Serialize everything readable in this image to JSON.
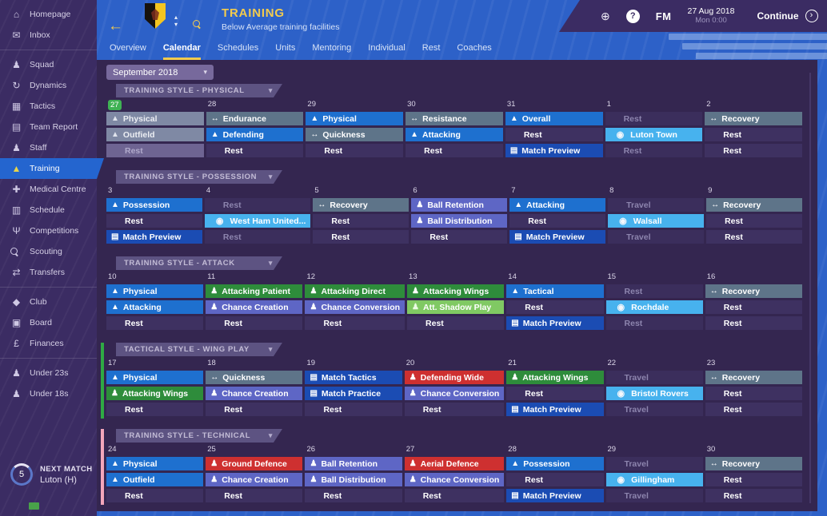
{
  "header": {
    "title": "TRAINING",
    "subtitle": "Below Average training facilities"
  },
  "topbar": {
    "fm_label": "FM",
    "date_line1": "27 Aug 2018",
    "date_line2": "Mon 0:00",
    "continue_label": "Continue"
  },
  "tabs": [
    {
      "label": "Overview",
      "active": false
    },
    {
      "label": "Calendar",
      "active": true
    },
    {
      "label": "Schedules",
      "active": false
    },
    {
      "label": "Units",
      "active": false
    },
    {
      "label": "Mentoring",
      "active": false
    },
    {
      "label": "Individual",
      "active": false
    },
    {
      "label": "Rest",
      "active": false
    },
    {
      "label": "Coaches",
      "active": false
    }
  ],
  "toolbar": {
    "month_label": "September 2018"
  },
  "sidebar": {
    "items": [
      {
        "icon": "home",
        "label": "Homepage"
      },
      {
        "icon": "inbox",
        "label": "Inbox",
        "divider_after": true
      },
      {
        "icon": "squad",
        "label": "Squad"
      },
      {
        "icon": "dynamics",
        "label": "Dynamics"
      },
      {
        "icon": "tactics",
        "label": "Tactics"
      },
      {
        "icon": "report",
        "label": "Team Report"
      },
      {
        "icon": "staff",
        "label": "Staff"
      },
      {
        "icon": "training",
        "label": "Training",
        "selected": true
      },
      {
        "icon": "medical",
        "label": "Medical Centre"
      },
      {
        "icon": "schedule",
        "label": "Schedule"
      },
      {
        "icon": "competitions",
        "label": "Competitions"
      },
      {
        "icon": "scouting",
        "label": "Scouting"
      },
      {
        "icon": "transfers",
        "label": "Transfers",
        "divider_after": true
      },
      {
        "icon": "club",
        "label": "Club"
      },
      {
        "icon": "boardroom",
        "label": "Board"
      },
      {
        "icon": "finances",
        "label": "Finances",
        "divider_after": true
      },
      {
        "icon": "u23",
        "label": "Under 23s"
      },
      {
        "icon": "u18",
        "label": "Under 18s"
      }
    ],
    "next_match": {
      "heading": "NEXT MATCH",
      "opponent": "Luton (H)",
      "countdown": "5"
    }
  },
  "colors": {
    "general_session": "#1e70cf",
    "physical_session": "#5e7489",
    "technical_session": "#5e66c5",
    "attacking_session": "#2e8c3b",
    "attacking_light_session": "#80c963",
    "defensive_session": "#ce3030",
    "match_preparation": "#1b4cb3",
    "match_day": "#47b2ee",
    "rest": "#3e3161",
    "today_badge": "#3fb254",
    "wing_play_accent": "#2faa44",
    "technical_accent": "#f2a6ba",
    "title_yellow": "#f2cb4e"
  },
  "weeks": [
    {
      "style_label": "TRAINING STYLE - PHYSICAL",
      "accent": null,
      "days": [
        {
          "num": "27",
          "today": true,
          "cells": [
            {
              "label": "Physical",
              "type": "past-session",
              "icon": "cone"
            },
            {
              "label": "Outfield",
              "type": "past-session",
              "icon": "cone"
            },
            {
              "label": "Rest",
              "type": "past-rest"
            }
          ]
        },
        {
          "num": "28",
          "cells": [
            {
              "label": "Endurance",
              "type": "physical",
              "icon": "stretch"
            },
            {
              "label": "Defending",
              "type": "general",
              "icon": "cone"
            },
            {
              "label": "Rest",
              "type": "rest"
            }
          ]
        },
        {
          "num": "29",
          "cells": [
            {
              "label": "Physical",
              "type": "general",
              "icon": "cone"
            },
            {
              "label": "Quickness",
              "type": "physical",
              "icon": "stretch"
            },
            {
              "label": "Rest",
              "type": "rest"
            }
          ]
        },
        {
          "num": "30",
          "cells": [
            {
              "label": "Resistance",
              "type": "physical",
              "icon": "stretch"
            },
            {
              "label": "Attacking",
              "type": "general",
              "icon": "cone"
            },
            {
              "label": "Rest",
              "type": "rest"
            }
          ]
        },
        {
          "num": "31",
          "cells": [
            {
              "label": "Overall",
              "type": "general",
              "icon": "cone"
            },
            {
              "label": "Rest",
              "type": "rest"
            },
            {
              "label": "Match Preview",
              "type": "prep",
              "icon": "board"
            }
          ]
        },
        {
          "num": "1",
          "cells": [
            {
              "label": "Rest",
              "type": "rest-muted"
            },
            {
              "label": "Luton Town",
              "type": "match",
              "icon": "badge"
            },
            {
              "label": "Rest",
              "type": "rest-muted"
            }
          ]
        },
        {
          "num": "2",
          "cells": [
            {
              "label": "Recovery",
              "type": "physical",
              "icon": "stretch"
            },
            {
              "label": "Rest",
              "type": "rest"
            },
            {
              "label": "Rest",
              "type": "rest"
            }
          ]
        }
      ]
    },
    {
      "style_label": "TRAINING STYLE - POSSESSION",
      "accent": null,
      "days": [
        {
          "num": "3",
          "cells": [
            {
              "label": "Possession",
              "type": "general",
              "icon": "cone"
            },
            {
              "label": "Rest",
              "type": "rest"
            },
            {
              "label": "Match Preview",
              "type": "prep",
              "icon": "board"
            }
          ]
        },
        {
          "num": "4",
          "cells": [
            {
              "label": "Rest",
              "type": "rest-muted"
            },
            {
              "label": "West Ham United...",
              "type": "match",
              "icon": "badge"
            },
            {
              "label": "Rest",
              "type": "rest-muted"
            }
          ]
        },
        {
          "num": "5",
          "cells": [
            {
              "label": "Recovery",
              "type": "physical",
              "icon": "stretch"
            },
            {
              "label": "Rest",
              "type": "rest"
            },
            {
              "label": "Rest",
              "type": "rest"
            }
          ]
        },
        {
          "num": "6",
          "cells": [
            {
              "label": "Ball Retention",
              "type": "technical",
              "icon": "person"
            },
            {
              "label": "Ball Distribution",
              "type": "technical",
              "icon": "person"
            },
            {
              "label": "Rest",
              "type": "rest"
            }
          ]
        },
        {
          "num": "7",
          "cells": [
            {
              "label": "Attacking",
              "type": "general",
              "icon": "cone"
            },
            {
              "label": "Rest",
              "type": "rest"
            },
            {
              "label": "Match Preview",
              "type": "prep",
              "icon": "board"
            }
          ]
        },
        {
          "num": "8",
          "cells": [
            {
              "label": "Travel",
              "type": "rest-muted"
            },
            {
              "label": "Walsall",
              "type": "match",
              "icon": "badge"
            },
            {
              "label": "Travel",
              "type": "rest-muted"
            }
          ]
        },
        {
          "num": "9",
          "cells": [
            {
              "label": "Recovery",
              "type": "physical",
              "icon": "stretch"
            },
            {
              "label": "Rest",
              "type": "rest"
            },
            {
              "label": "Rest",
              "type": "rest"
            }
          ]
        }
      ]
    },
    {
      "style_label": "TRAINING STYLE - ATTACK",
      "accent": null,
      "days": [
        {
          "num": "10",
          "cells": [
            {
              "label": "Physical",
              "type": "general",
              "icon": "cone"
            },
            {
              "label": "Attacking",
              "type": "general",
              "icon": "cone"
            },
            {
              "label": "Rest",
              "type": "rest"
            }
          ]
        },
        {
          "num": "11",
          "cells": [
            {
              "label": "Attacking Patient",
              "type": "attack",
              "icon": "runner"
            },
            {
              "label": "Chance Creation",
              "type": "technical",
              "icon": "person"
            },
            {
              "label": "Rest",
              "type": "rest"
            }
          ]
        },
        {
          "num": "12",
          "cells": [
            {
              "label": "Attacking Direct",
              "type": "attack",
              "icon": "runner"
            },
            {
              "label": "Chance Conversion",
              "type": "technical",
              "icon": "person"
            },
            {
              "label": "Rest",
              "type": "rest"
            }
          ]
        },
        {
          "num": "13",
          "cells": [
            {
              "label": "Attacking Wings",
              "type": "attack",
              "icon": "runner"
            },
            {
              "label": "Att. Shadow Play",
              "type": "attack-light",
              "icon": "person"
            },
            {
              "label": "Rest",
              "type": "rest"
            }
          ]
        },
        {
          "num": "14",
          "cells": [
            {
              "label": "Tactical",
              "type": "general",
              "icon": "cone"
            },
            {
              "label": "Rest",
              "type": "rest"
            },
            {
              "label": "Match Preview",
              "type": "prep",
              "icon": "board"
            }
          ]
        },
        {
          "num": "15",
          "cells": [
            {
              "label": "Rest",
              "type": "rest-muted"
            },
            {
              "label": "Rochdale",
              "type": "match",
              "icon": "badge"
            },
            {
              "label": "Rest",
              "type": "rest-muted"
            }
          ]
        },
        {
          "num": "16",
          "cells": [
            {
              "label": "Recovery",
              "type": "physical",
              "icon": "stretch"
            },
            {
              "label": "Rest",
              "type": "rest"
            },
            {
              "label": "Rest",
              "type": "rest"
            }
          ]
        }
      ]
    },
    {
      "style_label": "TACTICAL STYLE - WING PLAY",
      "accent": "green",
      "days": [
        {
          "num": "17",
          "cells": [
            {
              "label": "Physical",
              "type": "general",
              "icon": "cone"
            },
            {
              "label": "Attacking Wings",
              "type": "attack",
              "icon": "runner"
            },
            {
              "label": "Rest",
              "type": "rest"
            }
          ]
        },
        {
          "num": "18",
          "cells": [
            {
              "label": "Quickness",
              "type": "physical",
              "icon": "stretch"
            },
            {
              "label": "Chance Creation",
              "type": "technical",
              "icon": "person"
            },
            {
              "label": "Rest",
              "type": "rest"
            }
          ]
        },
        {
          "num": "19",
          "cells": [
            {
              "label": "Match Tactics",
              "type": "prep",
              "icon": "board"
            },
            {
              "label": "Match Practice",
              "type": "prep",
              "icon": "board"
            },
            {
              "label": "Rest",
              "type": "rest"
            }
          ]
        },
        {
          "num": "20",
          "cells": [
            {
              "label": "Defending Wide",
              "type": "defence",
              "icon": "tackle"
            },
            {
              "label": "Chance Conversion",
              "type": "technical",
              "icon": "person"
            },
            {
              "label": "Rest",
              "type": "rest"
            }
          ]
        },
        {
          "num": "21",
          "cells": [
            {
              "label": "Attacking Wings",
              "type": "attack",
              "icon": "runner"
            },
            {
              "label": "Rest",
              "type": "rest"
            },
            {
              "label": "Match Preview",
              "type": "prep",
              "icon": "board"
            }
          ]
        },
        {
          "num": "22",
          "cells": [
            {
              "label": "Travel",
              "type": "rest-muted"
            },
            {
              "label": "Bristol Rovers",
              "type": "match",
              "icon": "badge"
            },
            {
              "label": "Travel",
              "type": "rest-muted"
            }
          ]
        },
        {
          "num": "23",
          "cells": [
            {
              "label": "Recovery",
              "type": "physical",
              "icon": "stretch"
            },
            {
              "label": "Rest",
              "type": "rest"
            },
            {
              "label": "Rest",
              "type": "rest"
            }
          ]
        }
      ]
    },
    {
      "style_label": "TRAINING STYLE - TECHNICAL",
      "accent": "pink",
      "days": [
        {
          "num": "24",
          "cells": [
            {
              "label": "Physical",
              "type": "general",
              "icon": "cone"
            },
            {
              "label": "Outfield",
              "type": "general",
              "icon": "cone"
            },
            {
              "label": "Rest",
              "type": "rest"
            }
          ]
        },
        {
          "num": "25",
          "cells": [
            {
              "label": "Ground Defence",
              "type": "defence",
              "icon": "tackle"
            },
            {
              "label": "Chance Creation",
              "type": "technical",
              "icon": "person"
            },
            {
              "label": "Rest",
              "type": "rest"
            }
          ]
        },
        {
          "num": "26",
          "cells": [
            {
              "label": "Ball Retention",
              "type": "technical",
              "icon": "person"
            },
            {
              "label": "Ball Distribution",
              "type": "technical",
              "icon": "person"
            },
            {
              "label": "Rest",
              "type": "rest"
            }
          ]
        },
        {
          "num": "27",
          "cells": [
            {
              "label": "Aerial Defence",
              "type": "defence",
              "icon": "tackle"
            },
            {
              "label": "Chance Conversion",
              "type": "technical",
              "icon": "person"
            },
            {
              "label": "Rest",
              "type": "rest"
            }
          ]
        },
        {
          "num": "28",
          "cells": [
            {
              "label": "Possession",
              "type": "general",
              "icon": "cone"
            },
            {
              "label": "Rest",
              "type": "rest"
            },
            {
              "label": "Match Preview",
              "type": "prep",
              "icon": "board"
            }
          ]
        },
        {
          "num": "29",
          "cells": [
            {
              "label": "Travel",
              "type": "rest-muted"
            },
            {
              "label": "Gillingham",
              "type": "match",
              "icon": "badge"
            },
            {
              "label": "Travel",
              "type": "rest-muted"
            }
          ]
        },
        {
          "num": "30",
          "cells": [
            {
              "label": "Recovery",
              "type": "physical",
              "icon": "stretch"
            },
            {
              "label": "Rest",
              "type": "rest"
            },
            {
              "label": "Rest",
              "type": "rest"
            }
          ]
        }
      ]
    }
  ]
}
